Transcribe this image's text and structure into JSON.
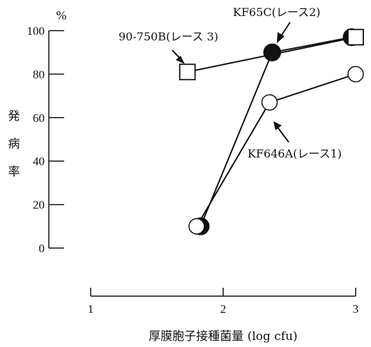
{
  "chart_data": {
    "type": "line",
    "xlabel": "厚膜胞子接種菌量 (log cfu)",
    "ylabel": "発病率",
    "y_unit": "%",
    "xlim": [
      1,
      3
    ],
    "ylim": [
      0,
      100
    ],
    "x_ticks": [
      "1",
      "2",
      "3"
    ],
    "y_ticks": [
      "0",
      "20",
      "40",
      "60",
      "80",
      "100"
    ],
    "series": [
      {
        "name": "90-750B(レース 3)",
        "marker": "open-square",
        "x": [
          1.73,
          3.0
        ],
        "y": [
          81,
          97
        ]
      },
      {
        "name": "KF65C(レース2)",
        "marker": "filled-circle",
        "x": [
          1.83,
          2.37,
          2.97
        ],
        "y": [
          10,
          90,
          97
        ]
      },
      {
        "name": "KF646A(レース1)",
        "marker": "open-circle",
        "x": [
          1.8,
          2.35,
          3.0
        ],
        "y": [
          10,
          67,
          80
        ]
      }
    ],
    "annotations": [
      {
        "text": "90-750B(レース 3)",
        "series": 0
      },
      {
        "text": "KF65C(レース2)",
        "series": 1
      },
      {
        "text": "KF646A(レース1)",
        "series": 2
      }
    ],
    "grid": false,
    "legend": "none"
  }
}
